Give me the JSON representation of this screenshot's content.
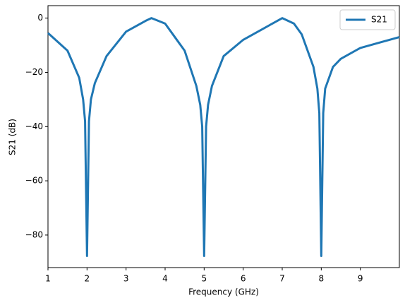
{
  "chart_data": {
    "type": "line",
    "xlabel": "Frequency (GHz)",
    "ylabel": "S21 (dB)",
    "x": [
      1,
      1.5,
      1.8,
      1.9,
      1.95,
      2.0,
      2.05,
      2.1,
      2.2,
      2.5,
      3.0,
      3.5,
      3.65,
      4.0,
      4.5,
      4.8,
      4.9,
      4.95,
      5.0,
      5.05,
      5.1,
      5.2,
      5.5,
      6.0,
      6.5,
      7.0,
      7.3,
      7.5,
      7.8,
      7.9,
      7.95,
      8.0,
      8.05,
      8.1,
      8.3,
      8.5,
      9.0,
      9.5,
      10
    ],
    "series": [
      {
        "name": "S21",
        "color": "#1f77b4",
        "values": [
          -5.5,
          -12,
          -22,
          -30,
          -38,
          -87.7,
          -38,
          -30,
          -24,
          -14,
          -5,
          -1,
          0,
          -2,
          -12,
          -25,
          -32,
          -40,
          -87.7,
          -40,
          -32,
          -25,
          -14,
          -8,
          -4,
          0,
          -2,
          -6,
          -18,
          -26,
          -35,
          -87.7,
          -35,
          -26,
          -18,
          -15,
          -11,
          -9,
          -7
        ]
      }
    ],
    "xlim": [
      1,
      10
    ],
    "xticks": [
      1,
      2,
      3,
      4,
      5,
      6,
      7,
      8,
      9
    ],
    "ylim": [
      -92,
      4.6
    ],
    "yticks": [
      {
        "value": 0,
        "label": "0"
      },
      {
        "value": -20,
        "label": "−20"
      },
      {
        "value": -40,
        "label": "−40"
      },
      {
        "value": -60,
        "label": "−60"
      },
      {
        "value": -80,
        "label": "−80"
      }
    ],
    "legend": "upper right",
    "grid": false
  }
}
